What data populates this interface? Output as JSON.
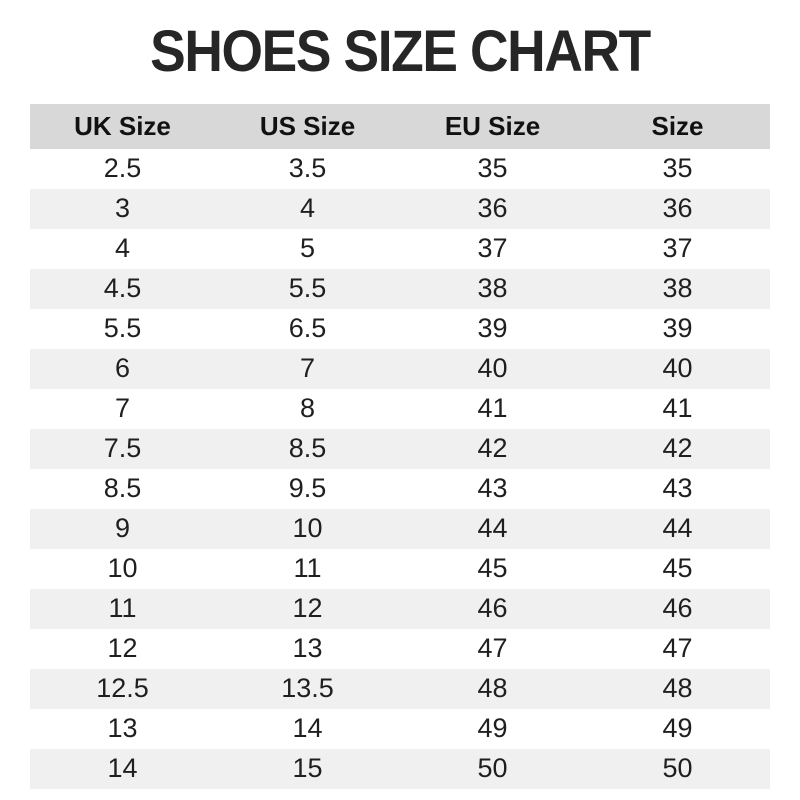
{
  "title": "SHOES SIZE CHART",
  "colors": {
    "header_bg": "#d8d8d8",
    "stripe_bg": "#f0f0f0",
    "title_text": "#262626",
    "body_text": "#1f1f1f"
  },
  "table": {
    "headers": [
      "UK Size",
      "US Size",
      "EU Size",
      "Size"
    ],
    "rows": [
      [
        "2.5",
        "3.5",
        "35",
        "35"
      ],
      [
        "3",
        "4",
        "36",
        "36"
      ],
      [
        "4",
        "5",
        "37",
        "37"
      ],
      [
        "4.5",
        "5.5",
        "38",
        "38"
      ],
      [
        "5.5",
        "6.5",
        "39",
        "39"
      ],
      [
        "6",
        "7",
        "40",
        "40"
      ],
      [
        "7",
        "8",
        "41",
        "41"
      ],
      [
        "7.5",
        "8.5",
        "42",
        "42"
      ],
      [
        "8.5",
        "9.5",
        "43",
        "43"
      ],
      [
        "9",
        "10",
        "44",
        "44"
      ],
      [
        "10",
        "11",
        "45",
        "45"
      ],
      [
        "11",
        "12",
        "46",
        "46"
      ],
      [
        "12",
        "13",
        "47",
        "47"
      ],
      [
        "12.5",
        "13.5",
        "48",
        "48"
      ],
      [
        "13",
        "14",
        "49",
        "49"
      ],
      [
        "14",
        "15",
        "50",
        "50"
      ]
    ]
  },
  "chart_data": {
    "type": "table",
    "title": "SHOES SIZE CHART",
    "columns": [
      "UK Size",
      "US Size",
      "EU Size",
      "Size"
    ],
    "rows": [
      [
        "2.5",
        "3.5",
        "35",
        "35"
      ],
      [
        "3",
        "4",
        "36",
        "36"
      ],
      [
        "4",
        "5",
        "37",
        "37"
      ],
      [
        "4.5",
        "5.5",
        "38",
        "38"
      ],
      [
        "5.5",
        "6.5",
        "39",
        "39"
      ],
      [
        "6",
        "7",
        "40",
        "40"
      ],
      [
        "7",
        "8",
        "41",
        "41"
      ],
      [
        "7.5",
        "8.5",
        "42",
        "42"
      ],
      [
        "8.5",
        "9.5",
        "43",
        "43"
      ],
      [
        "9",
        "10",
        "44",
        "44"
      ],
      [
        "10",
        "11",
        "45",
        "45"
      ],
      [
        "11",
        "12",
        "46",
        "46"
      ],
      [
        "12",
        "13",
        "47",
        "47"
      ],
      [
        "12.5",
        "13.5",
        "48",
        "48"
      ],
      [
        "13",
        "14",
        "49",
        "49"
      ],
      [
        "14",
        "15",
        "50",
        "50"
      ]
    ],
    "layout": {
      "header_background": "#d8d8d8",
      "row_striping": "alternating white and #f0f0f0",
      "text_alignment": "center"
    }
  }
}
